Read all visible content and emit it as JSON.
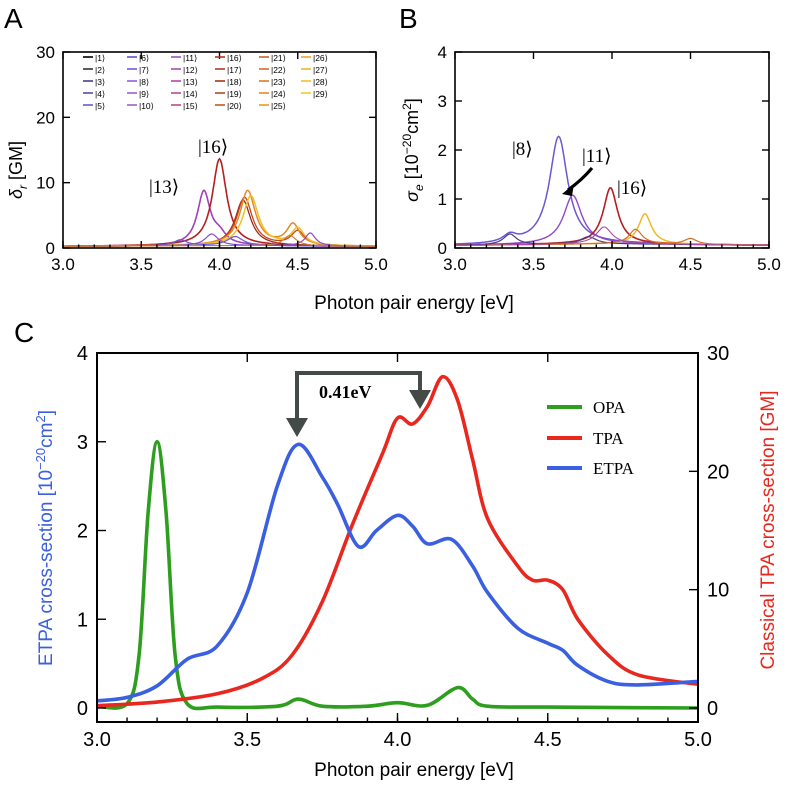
{
  "panels": {
    "A": {
      "letter": "A",
      "ylabel_main": "δ",
      "ylabel_sub": "r",
      "ylabel_unit": " [GM]",
      "xticks": [
        "3.0",
        "3.5",
        "4.0",
        "4.5",
        "5.0"
      ],
      "yticks": [
        "0",
        "10",
        "20",
        "30"
      ],
      "xlim": [
        3.0,
        5.0
      ],
      "ylim": [
        0,
        30
      ],
      "legend": [
        "|1⟩",
        "|2⟩",
        "|3⟩",
        "|4⟩",
        "|5⟩",
        "|6⟩",
        "|7⟩",
        "|8⟩",
        "|9⟩",
        "|10⟩",
        "|11⟩",
        "|12⟩",
        "|13⟩",
        "|14⟩",
        "|15⟩",
        "|16⟩",
        "|17⟩",
        "|18⟩",
        "|19⟩",
        "|20⟩",
        "|21⟩",
        "|22⟩",
        "|23⟩",
        "|24⟩",
        "|25⟩",
        "|26⟩",
        "|27⟩",
        "|28⟩",
        "|29⟩"
      ],
      "legend_colors": [
        "#000000",
        "#333333",
        "#4b3d8a",
        "#5a4aa8",
        "#6d5ad2",
        "#6a4fc8",
        "#7a58d8",
        "#8c5fe0",
        "#9a5fd4",
        "#a35ec8",
        "#a04fc0",
        "#a54cb2",
        "#b04aa4",
        "#b84c96",
        "#bd4c88",
        "#b8301e",
        "#b23c22",
        "#a8321a",
        "#b64a20",
        "#c05a22",
        "#c9622a",
        "#d46e2a",
        "#dc7a28",
        "#e38a26",
        "#e89a24",
        "#eaa824",
        "#efb624",
        "#f1c228",
        "#f0cc30"
      ],
      "annotations": [
        "|13⟩",
        "|16⟩"
      ],
      "series": [
        {
          "color": "#a33fb7",
          "width": 1.6,
          "peaks": [
            [
              3.9,
              8.2,
              0.05
            ],
            [
              4.0,
              1.4,
              0.05
            ]
          ]
        },
        {
          "color": "#b41f1f",
          "width": 1.6,
          "peaks": [
            [
              4.0,
              13.3,
              0.055
            ]
          ]
        },
        {
          "color": "#9c2a1e",
          "width": 1.3,
          "peaks": [
            [
              4.15,
              7.0,
              0.06
            ]
          ]
        },
        {
          "color": "#c4481a",
          "width": 1.3,
          "peaks": [
            [
              4.16,
              7.4,
              0.06
            ],
            [
              4.5,
              2.2,
              0.05
            ]
          ]
        },
        {
          "color": "#e38a26",
          "width": 1.5,
          "peaks": [
            [
              4.18,
              8.4,
              0.06
            ],
            [
              4.47,
              3.2,
              0.05
            ]
          ]
        },
        {
          "color": "#f0c02a",
          "width": 1.5,
          "peaks": [
            [
              4.2,
              7.6,
              0.06
            ],
            [
              4.5,
              2.6,
              0.05
            ]
          ]
        },
        {
          "color": "#8a4dcf",
          "width": 1.2,
          "peaks": [
            [
              4.58,
              2.0,
              0.04
            ],
            [
              3.95,
              1.8,
              0.05
            ]
          ]
        },
        {
          "color": "#6a58d0",
          "width": 1.2,
          "peaks": [
            [
              4.1,
              1.4,
              0.06
            ],
            [
              3.75,
              0.9,
              0.05
            ]
          ]
        },
        {
          "color": "#d07a3a",
          "width": 1.1,
          "peaks": [
            [
              4.45,
              1.6,
              0.05
            ]
          ]
        }
      ],
      "baseline": 0.35
    },
    "B": {
      "letter": "B",
      "ylabel_main": "σ",
      "ylabel_sub": "e",
      "ylabel_unit": " [10",
      "ylabel_exp": "−20",
      "ylabel_unit2": "cm",
      "ylabel_exp2": "2",
      "ylabel_end": "]",
      "xticks": [
        "3.0",
        "3.5",
        "4.0",
        "4.5",
        "5.0"
      ],
      "yticks": [
        "0",
        "1",
        "2",
        "3",
        "4"
      ],
      "xlim": [
        3.0,
        5.0
      ],
      "ylim": [
        0,
        4
      ],
      "annotations": [
        "|8⟩",
        "|11⟩",
        "|16⟩"
      ],
      "series": [
        {
          "color": "#6a58d0",
          "width": 1.5,
          "peaks": [
            [
              3.66,
              2.2,
              0.07
            ],
            [
              3.35,
              0.15,
              0.05
            ]
          ]
        },
        {
          "color": "#9048c8",
          "width": 1.4,
          "peaks": [
            [
              3.75,
              1.0,
              0.07
            ]
          ]
        },
        {
          "color": "#b41f1f",
          "width": 1.6,
          "peaks": [
            [
              3.99,
              1.15,
              0.055
            ]
          ]
        },
        {
          "color": "#f0b82a",
          "width": 1.5,
          "peaks": [
            [
              4.21,
              0.62,
              0.05
            ]
          ]
        },
        {
          "color": "#4a3c8a",
          "width": 1.2,
          "peaks": [
            [
              3.35,
              0.22,
              0.05
            ],
            [
              3.85,
              0.15,
              0.06
            ]
          ]
        },
        {
          "color": "#d4702a",
          "width": 1.2,
          "peaks": [
            [
              4.15,
              0.3,
              0.05
            ],
            [
              4.5,
              0.12,
              0.05
            ]
          ]
        },
        {
          "color": "#a84aa0",
          "width": 1.1,
          "peaks": [
            [
              3.95,
              0.35,
              0.06
            ]
          ]
        }
      ],
      "baseline": 0.08
    },
    "C": {
      "letter": "C",
      "xlabel": "Photon pair energy [eV]",
      "ylabel_left": "ETPA cross-section [10",
      "ylabel_left_exp": "−20",
      "ylabel_left_unit": "cm",
      "ylabel_left_exp2": "2",
      "ylabel_left_end": "]",
      "ylabel_right": "Classical TPA cross-section [GM]",
      "xticks": [
        "3.0",
        "3.5",
        "4.0",
        "4.5",
        "5.0"
      ],
      "yticks_left": [
        "0",
        "1",
        "2",
        "3",
        "4"
      ],
      "yticks_right": [
        "0",
        "10",
        "20",
        "30"
      ],
      "xlim": [
        3.0,
        5.0
      ],
      "ylim_left": [
        0,
        4
      ],
      "ylim_right": [
        0,
        30
      ],
      "shift_label": "0.41eV",
      "legend": [
        "OPA",
        "TPA",
        "ETPA"
      ]
    },
    "shared_xlabel": "Photon pair energy [eV]"
  },
  "colors": {
    "OPA": "#2e9e1e",
    "TPA": "#e8281e",
    "ETPA": "#3a5fe0",
    "arrow": "#444a48"
  },
  "chart_data": [
    {
      "panel": "A",
      "type": "line",
      "title": "",
      "xlabel": "Photon pair energy [eV]",
      "ylabel": "δr [GM]",
      "xlim": [
        3.0,
        5.0
      ],
      "ylim": [
        0,
        30
      ],
      "series": [
        {
          "name": "|13⟩",
          "peak_x": 3.9,
          "peak_y": 8.2
        },
        {
          "name": "|16⟩",
          "peak_x": 4.0,
          "peak_y": 13.3
        },
        {
          "name": "|2x⟩ orange",
          "peak_x": 4.18,
          "peak_y": 8.4
        },
        {
          "name": "|2x⟩ yellow",
          "peak_x": 4.2,
          "peak_y": 7.6
        }
      ]
    },
    {
      "panel": "B",
      "type": "line",
      "title": "",
      "xlabel": "Photon pair energy [eV]",
      "ylabel": "σe [10^-20 cm^2]",
      "xlim": [
        3.0,
        5.0
      ],
      "ylim": [
        0,
        4
      ],
      "series": [
        {
          "name": "|8⟩",
          "peak_x": 3.66,
          "peak_y": 2.2
        },
        {
          "name": "|11⟩",
          "peak_x": 3.75,
          "peak_y": 1.0
        },
        {
          "name": "|16⟩",
          "peak_x": 3.99,
          "peak_y": 1.15
        },
        {
          "name": "yellow",
          "peak_x": 4.21,
          "peak_y": 0.62
        }
      ]
    },
    {
      "panel": "C",
      "type": "line",
      "title": "",
      "xlabel": "Photon pair energy [eV]",
      "ylabel": "ETPA cross-section [10^-20 cm^2]",
      "ylabel_right": "Classical TPA cross-section [GM]",
      "xlim": [
        3.0,
        5.0
      ],
      "ylim": [
        0,
        4
      ],
      "ylim_right": [
        0,
        30
      ],
      "series": [
        {
          "name": "OPA",
          "axis": "left",
          "x": [
            3.0,
            3.1,
            3.14,
            3.17,
            3.2,
            3.23,
            3.26,
            3.3,
            3.4,
            3.6,
            3.67,
            3.75,
            3.9,
            4.0,
            4.1,
            4.2,
            4.25,
            4.3,
            4.5,
            5.0
          ],
          "y": [
            0.02,
            0.05,
            0.6,
            2.2,
            3.0,
            2.2,
            0.6,
            0.05,
            0.01,
            0.02,
            0.1,
            0.02,
            0.02,
            0.06,
            0.03,
            0.23,
            0.1,
            0.02,
            0.01,
            0.0
          ]
        },
        {
          "name": "TPA",
          "axis": "right",
          "x": [
            3.0,
            3.2,
            3.4,
            3.55,
            3.65,
            3.75,
            3.85,
            3.95,
            4.0,
            4.05,
            4.1,
            4.15,
            4.2,
            4.25,
            4.3,
            4.4,
            4.45,
            4.5,
            4.55,
            4.6,
            4.7,
            4.8,
            5.0
          ],
          "y": [
            0.2,
            0.5,
            1.2,
            2.5,
            4.5,
            9.0,
            15.5,
            21.5,
            24.5,
            24.0,
            25.5,
            28.0,
            26.0,
            21.0,
            16.0,
            12.0,
            10.8,
            10.8,
            10.0,
            7.5,
            4.5,
            2.8,
            2.0
          ]
        },
        {
          "name": "ETPA",
          "axis": "left",
          "x": [
            3.0,
            3.1,
            3.2,
            3.3,
            3.4,
            3.5,
            3.6,
            3.67,
            3.75,
            3.8,
            3.87,
            3.93,
            4.0,
            4.05,
            4.1,
            4.18,
            4.25,
            4.3,
            4.4,
            4.5,
            4.55,
            4.6,
            4.7,
            4.8,
            5.0
          ],
          "y": [
            0.08,
            0.12,
            0.25,
            0.55,
            0.7,
            1.3,
            2.5,
            2.97,
            2.6,
            2.3,
            1.82,
            2.0,
            2.17,
            2.05,
            1.85,
            1.9,
            1.6,
            1.3,
            0.9,
            0.73,
            0.65,
            0.48,
            0.3,
            0.26,
            0.3
          ]
        }
      ],
      "annotation": {
        "text": "0.41eV",
        "from_x": 3.67,
        "to_x": 4.08
      }
    }
  ]
}
